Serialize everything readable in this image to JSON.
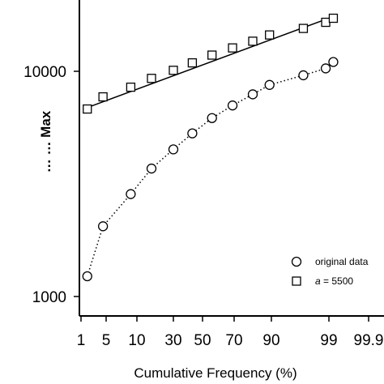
{
  "chart_data": {
    "type": "scatter",
    "xlabel": "Cumulative Frequency (%)",
    "ylabel": "… … Max",
    "x_scale": "normal-probability",
    "y_scale": "log",
    "x_ticks": [
      1,
      5,
      10,
      30,
      50,
      70,
      90,
      99,
      99.9
    ],
    "x_tick_labels": [
      "1",
      "5",
      "10",
      "30",
      "50",
      "70",
      "90",
      "99",
      "99.9"
    ],
    "y_ticks": [
      1000,
      10000
    ],
    "y_tick_labels": [
      "1000",
      "10000"
    ],
    "ylim": [
      800,
      23000
    ],
    "grid": false,
    "legend_position": "bottom-right",
    "series": [
      {
        "name": "original data",
        "marker": "circle",
        "line": "dotted",
        "x": [
          2,
          4.5,
          9,
          18,
          30,
          43,
          56,
          69,
          80,
          89,
          95,
          98.5
        ],
        "y": [
          1230,
          2050,
          2850,
          3700,
          4500,
          5300,
          6200,
          7050,
          7900,
          8700,
          9600,
          10300
        ]
      },
      {
        "name": "a = 5500",
        "marker": "square",
        "line": "solid",
        "x": [
          2,
          4.5,
          9,
          18,
          30,
          43,
          56,
          69,
          80,
          89,
          95,
          98.5
        ],
        "y": [
          6800,
          7700,
          8500,
          9300,
          10100,
          10900,
          11800,
          12700,
          13600,
          14500,
          15500,
          16500
        ]
      }
    ],
    "fit_line": {
      "x": [
        2,
        99.1
      ],
      "y": [
        6900,
        17500
      ]
    },
    "circle_last": {
      "x": 99.1,
      "y": 11000
    },
    "square_last": {
      "x": 99.1,
      "y": 17200
    }
  }
}
